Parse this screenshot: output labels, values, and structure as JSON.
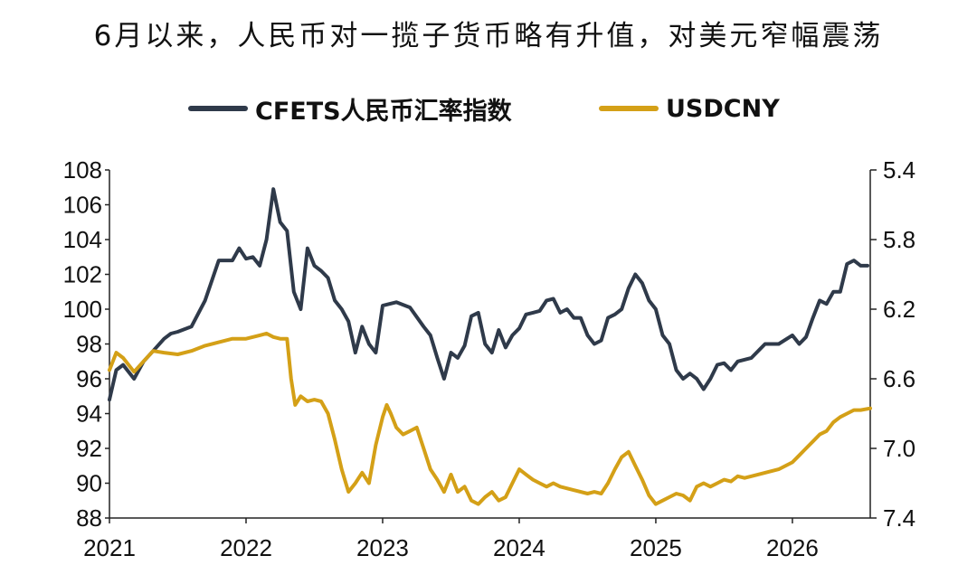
{
  "chart_data": {
    "type": "line",
    "title": "6月以来，人民币对一揽子货币略有升值，对美元窄幅震荡",
    "xlabel": "",
    "ylabel_left": "",
    "ylabel_right": "",
    "x_ticks": [
      "2021",
      "2022",
      "2023",
      "2024",
      "2025",
      "2026"
    ],
    "x_range": [
      2021.0,
      2026.57
    ],
    "y_left_ticks": [
      "88",
      "90",
      "92",
      "94",
      "96",
      "98",
      "100",
      "102",
      "104",
      "106",
      "108"
    ],
    "y_left_range": [
      88,
      108
    ],
    "y_right_ticks": [
      "5.4",
      "5.8",
      "6.2",
      "6.6",
      "7.0",
      "7.4"
    ],
    "y_right_range": [
      5.4,
      7.4
    ],
    "y_right_inverted": true,
    "legend_position": "top-center",
    "grid": false,
    "series": [
      {
        "name": "CFETS人民币汇率指数",
        "axis": "left",
        "color": "#2f3a4a",
        "x": [
          2021.0,
          2021.05,
          2021.1,
          2021.18,
          2021.25,
          2021.32,
          2021.4,
          2021.45,
          2021.5,
          2021.6,
          2021.7,
          2021.8,
          2021.9,
          2021.95,
          2022.0,
          2022.05,
          2022.1,
          2022.15,
          2022.2,
          2022.25,
          2022.3,
          2022.35,
          2022.4,
          2022.45,
          2022.5,
          2022.55,
          2022.6,
          2022.65,
          2022.7,
          2022.75,
          2022.8,
          2022.85,
          2022.9,
          2022.95,
          2023.0,
          2023.05,
          2023.1,
          2023.2,
          2023.3,
          2023.35,
          2023.4,
          2023.45,
          2023.5,
          2023.55,
          2023.6,
          2023.65,
          2023.7,
          2023.75,
          2023.8,
          2023.85,
          2023.9,
          2023.95,
          2024.0,
          2024.05,
          2024.1,
          2024.15,
          2024.2,
          2024.25,
          2024.3,
          2024.35,
          2024.4,
          2024.45,
          2024.5,
          2024.55,
          2024.6,
          2024.65,
          2024.7,
          2024.75,
          2024.8,
          2024.85,
          2024.9,
          2024.95,
          2025.0,
          2025.05,
          2025.1,
          2025.15,
          2025.2,
          2025.25,
          2025.3,
          2025.35,
          2025.4,
          2025.45,
          2025.5,
          2025.55,
          2025.6,
          2025.7,
          2025.8,
          2025.9,
          2026.0,
          2026.05,
          2026.1,
          2026.15,
          2026.2,
          2026.25,
          2026.3,
          2026.35,
          2026.4,
          2026.45,
          2026.5,
          2026.55
        ],
        "values": [
          94.8,
          96.5,
          96.8,
          96.0,
          97.0,
          97.6,
          98.3,
          98.6,
          98.7,
          99.0,
          100.5,
          102.8,
          102.8,
          103.5,
          102.9,
          103.0,
          102.5,
          104.0,
          106.9,
          105.0,
          104.5,
          101.0,
          100.0,
          103.5,
          102.5,
          102.2,
          101.8,
          100.5,
          100.0,
          99.3,
          97.5,
          99.0,
          98.0,
          97.5,
          100.2,
          100.3,
          100.4,
          100.1,
          99.0,
          98.5,
          97.2,
          96.0,
          97.5,
          97.2,
          97.9,
          99.6,
          99.8,
          98.0,
          97.5,
          98.8,
          97.8,
          98.5,
          98.9,
          99.7,
          99.8,
          99.9,
          100.5,
          100.6,
          99.8,
          100.0,
          99.5,
          99.5,
          98.5,
          98.0,
          98.2,
          99.5,
          99.7,
          100.0,
          101.2,
          102.0,
          101.5,
          100.5,
          100.0,
          98.5,
          98.0,
          96.5,
          96.0,
          96.3,
          96.0,
          95.4,
          96.0,
          96.8,
          96.9,
          96.5,
          97.0,
          97.2,
          98.0,
          98.0,
          98.5,
          98.0,
          98.4,
          99.5,
          100.5,
          100.3,
          101.0,
          101.0,
          102.6,
          102.8,
          102.5,
          102.5
        ]
      },
      {
        "name": "USDCNY",
        "axis": "right",
        "color": "#d4a017",
        "x": [
          2021.0,
          2021.05,
          2021.1,
          2021.18,
          2021.25,
          2021.32,
          2021.4,
          2021.5,
          2021.6,
          2021.7,
          2021.8,
          2021.9,
          2022.0,
          2022.1,
          2022.15,
          2022.2,
          2022.25,
          2022.3,
          2022.33,
          2022.36,
          2022.4,
          2022.45,
          2022.5,
          2022.55,
          2022.6,
          2022.65,
          2022.7,
          2022.75,
          2022.8,
          2022.85,
          2022.9,
          2022.95,
          2023.0,
          2023.03,
          2023.06,
          2023.1,
          2023.15,
          2023.2,
          2023.25,
          2023.3,
          2023.35,
          2023.4,
          2023.45,
          2023.5,
          2023.55,
          2023.6,
          2023.65,
          2023.7,
          2023.75,
          2023.8,
          2023.85,
          2023.9,
          2023.95,
          2024.0,
          2024.05,
          2024.1,
          2024.15,
          2024.2,
          2024.25,
          2024.3,
          2024.4,
          2024.5,
          2024.55,
          2024.6,
          2024.65,
          2024.7,
          2024.75,
          2024.8,
          2024.85,
          2024.9,
          2024.95,
          2025.0,
          2025.05,
          2025.1,
          2025.15,
          2025.2,
          2025.25,
          2025.3,
          2025.35,
          2025.4,
          2025.45,
          2025.5,
          2025.55,
          2025.6,
          2025.65,
          2025.7,
          2025.8,
          2025.9,
          2026.0,
          2026.05,
          2026.1,
          2026.15,
          2026.2,
          2026.25,
          2026.3,
          2026.35,
          2026.4,
          2026.45,
          2026.5,
          2026.57
        ],
        "values": [
          6.55,
          6.45,
          6.48,
          6.56,
          6.5,
          6.44,
          6.45,
          6.46,
          6.44,
          6.41,
          6.39,
          6.37,
          6.37,
          6.35,
          6.34,
          6.36,
          6.37,
          6.37,
          6.6,
          6.75,
          6.7,
          6.73,
          6.72,
          6.73,
          6.8,
          6.95,
          7.12,
          7.25,
          7.2,
          7.14,
          7.2,
          6.98,
          6.82,
          6.75,
          6.8,
          6.88,
          6.92,
          6.9,
          6.88,
          7.0,
          7.12,
          7.18,
          7.25,
          7.15,
          7.25,
          7.22,
          7.3,
          7.32,
          7.28,
          7.25,
          7.3,
          7.28,
          7.2,
          7.12,
          7.15,
          7.18,
          7.2,
          7.22,
          7.2,
          7.22,
          7.24,
          7.26,
          7.25,
          7.26,
          7.2,
          7.12,
          7.05,
          7.02,
          7.1,
          7.18,
          7.27,
          7.32,
          7.3,
          7.28,
          7.26,
          7.27,
          7.3,
          7.22,
          7.2,
          7.22,
          7.2,
          7.18,
          7.19,
          7.16,
          7.17,
          7.16,
          7.14,
          7.12,
          7.08,
          7.04,
          7.0,
          6.96,
          6.92,
          6.9,
          6.85,
          6.82,
          6.8,
          6.78,
          6.78,
          6.77
        ]
      }
    ]
  }
}
